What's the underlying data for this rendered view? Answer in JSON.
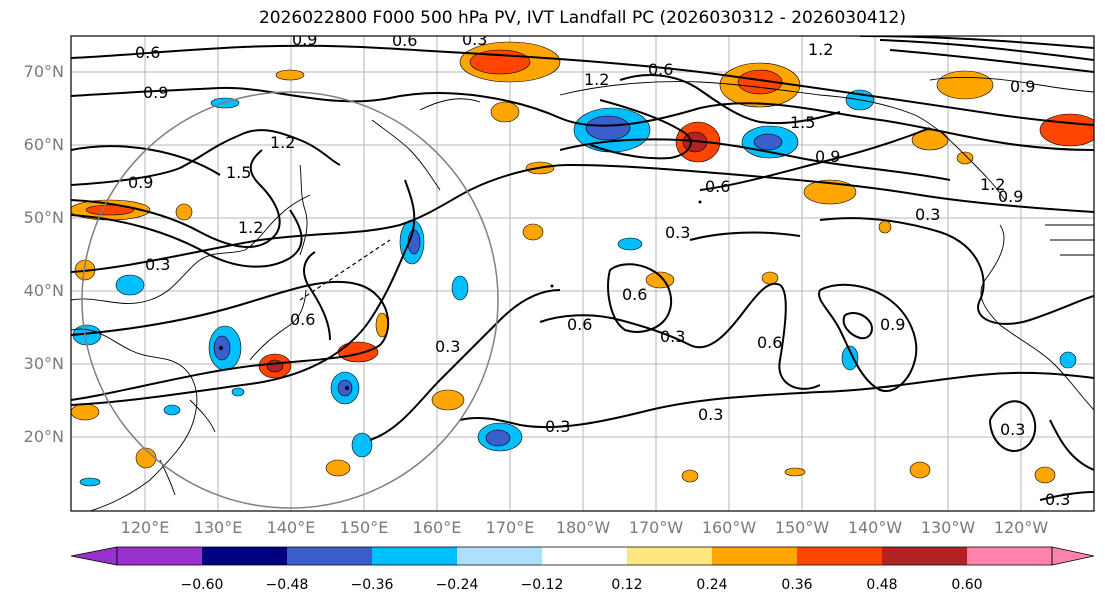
{
  "title": "2026022800 F000 500 hPa PV, IVT Landfall PC (2026030312 - 2026030412)",
  "lat_labels": [
    "70°N",
    "60°N",
    "50°N",
    "40°N",
    "30°N",
    "20°N"
  ],
  "lon_labels": [
    "120°E",
    "130°E",
    "140°E",
    "150°E",
    "160°E",
    "170°E",
    "180°W",
    "170°W",
    "160°W",
    "150°W",
    "140°W",
    "130°W",
    "120°W"
  ],
  "contour_labels": [
    "0.6",
    "0.9",
    "0.3",
    "0.6",
    "1.2",
    "0.6",
    "0.9",
    "1.2",
    "1.5",
    "1.2",
    "0.9",
    "0.3",
    "0.6",
    "0.6",
    "0.3",
    "0.6",
    "0.3",
    "0.6",
    "0.9",
    "0.6",
    "0.3",
    "0.3",
    "0.3",
    "1.2",
    "0.9",
    "0.3",
    "0.3",
    "0.3",
    "1.5",
    "1.2",
    "0.9",
    "0.9"
  ],
  "colorbar": {
    "ticks": [
      "−0.60",
      "−0.48",
      "−0.36",
      "−0.24",
      "−0.12",
      "0.12",
      "0.24",
      "0.36",
      "0.48",
      "0.60"
    ],
    "colors": [
      "#9932CC",
      "#000080",
      "#3A5FCD",
      "#00BFFF",
      "#ADDFFF",
      "#FFFFFF",
      "#FFE680",
      "#FFA500",
      "#FF4500",
      "#B22222",
      "#FF82AB"
    ]
  }
}
